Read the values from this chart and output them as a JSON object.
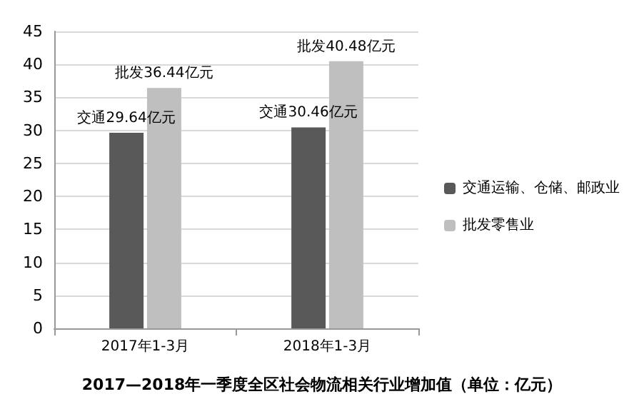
{
  "chart_data": {
    "type": "bar",
    "title": "2017—2018年一季度全区社会物流相关行业增加值（单位：亿元）",
    "categories": [
      "2017年1-3月",
      "2018年1-3月"
    ],
    "series": [
      {
        "name": "交通运输、仓储、邮政业",
        "color": "#595959",
        "values": [
          29.64,
          30.46
        ],
        "value_labels": [
          "交通29.64亿元",
          "交通30.46亿元"
        ]
      },
      {
        "name": "批发零售业",
        "color": "#bfbfbf",
        "values": [
          36.44,
          40.48
        ],
        "value_labels": [
          "批发36.44亿元",
          "批发40.48亿元"
        ]
      }
    ],
    "ylim": [
      0,
      45
    ],
    "yticks": [
      0,
      5,
      10,
      15,
      20,
      25,
      30,
      35,
      40,
      45
    ],
    "grid": "y",
    "legend": "right"
  }
}
